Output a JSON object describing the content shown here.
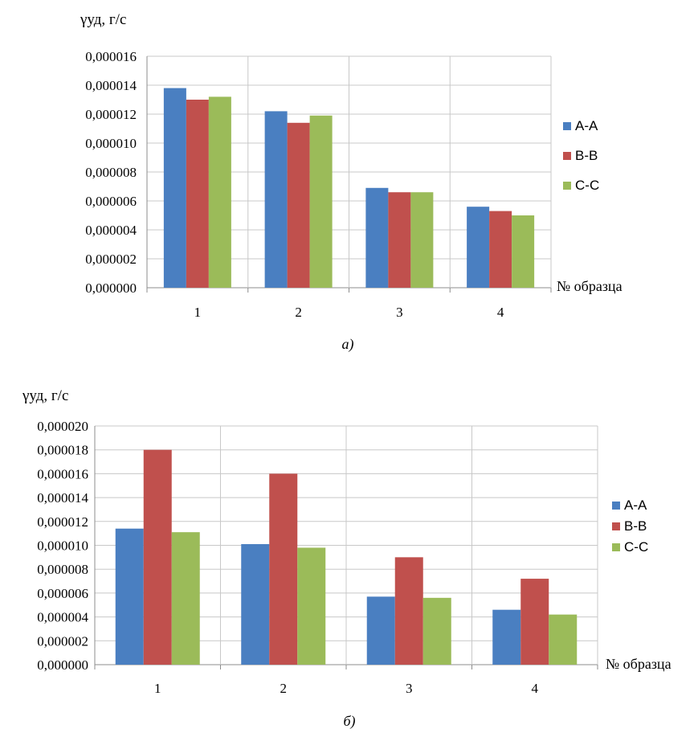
{
  "colors": {
    "A-A": "#4a7fc1",
    "B-B": "#c0504d",
    "C-C": "#9bbb59"
  },
  "chart_data": [
    {
      "type": "bar",
      "caption": "а)",
      "ylabel": "γуд, г/с",
      "xlabel": "№ образца",
      "categories": [
        "1",
        "2",
        "3",
        "4"
      ],
      "ylim": [
        0,
        1.6e-05
      ],
      "ytick_step": 2e-06,
      "ytick_labels": [
        "0,000000",
        "0,000002",
        "0,000004",
        "0,000006",
        "0,000008",
        "0,000010",
        "0,000012",
        "0,000014",
        "0,000016"
      ],
      "grid": true,
      "legend_position": "right",
      "series": [
        {
          "name": "A-A",
          "values": [
            1.38e-05,
            1.22e-05,
            6.9e-06,
            5.6e-06
          ]
        },
        {
          "name": "B-B",
          "values": [
            1.3e-05,
            1.14e-05,
            6.6e-06,
            5.3e-06
          ]
        },
        {
          "name": "C-C",
          "values": [
            1.32e-05,
            1.19e-05,
            6.6e-06,
            5e-06
          ]
        }
      ]
    },
    {
      "type": "bar",
      "caption": "б)",
      "ylabel": "γуд, г/с",
      "xlabel": "№ образца",
      "categories": [
        "1",
        "2",
        "3",
        "4"
      ],
      "ylim": [
        0,
        2e-05
      ],
      "ytick_step": 2e-06,
      "ytick_labels": [
        "0,000000",
        "0,000002",
        "0,000004",
        "0,000006",
        "0,000008",
        "0,000010",
        "0,000012",
        "0,000014",
        "0,000016",
        "0,000018",
        "0,000020"
      ],
      "grid": true,
      "legend_position": "right",
      "series": [
        {
          "name": "A-A",
          "values": [
            1.14e-05,
            1.01e-05,
            5.7e-06,
            4.6e-06
          ]
        },
        {
          "name": "B-B",
          "values": [
            1.8e-05,
            1.6e-05,
            9e-06,
            7.2e-06
          ]
        },
        {
          "name": "C-C",
          "values": [
            1.11e-05,
            9.8e-06,
            5.6e-06,
            4.2e-06
          ]
        }
      ]
    }
  ]
}
